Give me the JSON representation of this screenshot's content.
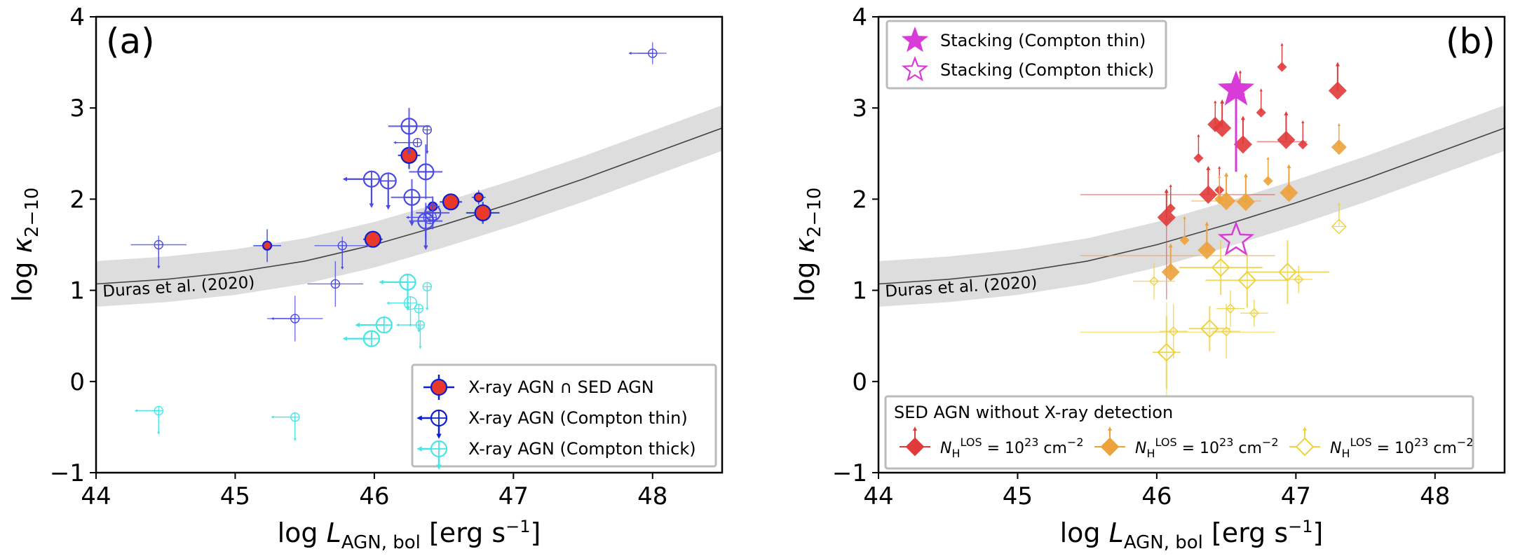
{
  "chart_data": [
    {
      "type": "scatter",
      "panel_label": "(a)",
      "xlabel": "log L_AGN, bol [erg s⁻¹]",
      "ylabel": "log κ2−10",
      "xlim": [
        44,
        48.5
      ],
      "ylim": [
        -1,
        4
      ],
      "xticks": [
        "44",
        "45",
        "46",
        "47",
        "48"
      ],
      "yticks": [
        "−1",
        "0",
        "1",
        "2",
        "3",
        "4"
      ],
      "grid": false,
      "relation": {
        "label": "Duras et al. (2020)",
        "x": [
          44.0,
          44.5,
          45.0,
          45.5,
          46.0,
          46.5,
          47.0,
          47.5,
          48.0,
          48.5
        ],
        "y": [
          1.07,
          1.12,
          1.2,
          1.32,
          1.5,
          1.72,
          1.96,
          2.22,
          2.5,
          2.78
        ],
        "band": 0.25
      },
      "legend": {
        "position": "lower right",
        "entries": [
          "X-ray AGN ∩ SED AGN",
          "X-ray AGN (Compton thin)",
          "X-ray AGN (Compton thick)"
        ]
      },
      "series": [
        {
          "name": "X-ray AGN ∩ SED AGN",
          "color": "#e8392a",
          "edge": "#0a1fd1",
          "points": [
            {
              "x": 46.25,
              "y": 2.48,
              "s": 1,
              "xe": 0.08,
              "ye": 0.15
            },
            {
              "x": 45.99,
              "y": 1.56,
              "s": 1,
              "xe": 0.07,
              "ye": 0.09
            },
            {
              "x": 46.55,
              "y": 1.97,
              "s": 1,
              "xe": 0.08,
              "ye": 0.09
            },
            {
              "x": 46.78,
              "y": 1.85,
              "s": 1,
              "xe": 0.12,
              "ye": 0.12
            },
            {
              "x": 45.23,
              "y": 1.49,
              "s": 0.5,
              "xe": 0.1,
              "ye": 0.18
            },
            {
              "x": 46.42,
              "y": 1.92,
              "s": 0.5,
              "xe": 0.05,
              "ye": 0.08
            },
            {
              "x": 46.75,
              "y": 2.02,
              "s": 0.5,
              "xe": 0.05,
              "ye": 0.08
            }
          ]
        },
        {
          "name": "X-ray AGN (Compton thin)",
          "color": "#4a4ae6",
          "points": [
            {
              "x": 46.25,
              "y": 2.8,
              "s": 1,
              "xe": 0.15,
              "ye": 0.2,
              "ul": "y"
            },
            {
              "x": 46.27,
              "y": 2.02,
              "s": 1,
              "xe": 0.15,
              "ye": 0.2,
              "ul": "y"
            },
            {
              "x": 45.98,
              "y": 2.22,
              "s": 1,
              "ul": "xy"
            },
            {
              "x": 46.1,
              "y": 2.2,
              "s": 1,
              "ul": "y"
            },
            {
              "x": 46.37,
              "y": 2.3,
              "s": 1,
              "xe": 0.12,
              "ye": 0.3
            },
            {
              "x": 46.42,
              "y": 1.85,
              "s": 1,
              "xe": 0.12,
              "ye": 0.18
            },
            {
              "x": 46.37,
              "y": 1.76,
              "s": 1,
              "xe": 0.12,
              "ye": 0.2,
              "ul": "y"
            },
            {
              "x": 46.4,
              "y": 1.8,
              "s": 0.8,
              "ul": "x"
            },
            {
              "x": 46.31,
              "y": 2.62,
              "s": 0.55,
              "ul": "x"
            },
            {
              "x": 46.38,
              "y": 2.76,
              "s": 0.55,
              "ul": "y"
            },
            {
              "x": 48.0,
              "y": 3.6,
              "s": 0.55,
              "xe": 0.1,
              "ye": 0.12,
              "ul": "x"
            },
            {
              "x": 44.45,
              "y": 1.5,
              "s": 0.55,
              "xe": 0.2,
              "ye": 0.1,
              "ul": "y"
            },
            {
              "x": 45.77,
              "y": 1.49,
              "s": 0.55,
              "xe": 0.2,
              "ye": 0.1,
              "ul": "y"
            },
            {
              "x": 45.72,
              "y": 1.07,
              "s": 0.55,
              "xe": 0.2,
              "ye": 0.25
            },
            {
              "x": 45.43,
              "y": 0.69,
              "s": 0.55,
              "xe": 0.2,
              "ye": 0.25,
              "ul": "x"
            }
          ]
        },
        {
          "name": "X-ray AGN (Compton thick)",
          "color": "#45e6e8",
          "points": [
            {
              "x": 46.24,
              "y": 1.09,
              "s": 1,
              "ul": "xy"
            },
            {
              "x": 46.07,
              "y": 0.62,
              "s": 1,
              "ul": "x"
            },
            {
              "x": 45.98,
              "y": 0.47,
              "s": 1,
              "ul": "x"
            },
            {
              "x": 46.26,
              "y": 0.86,
              "s": 0.8,
              "ul": "xy"
            },
            {
              "x": 46.38,
              "y": 1.04,
              "s": 0.55,
              "ul": "y"
            },
            {
              "x": 46.32,
              "y": 0.8,
              "s": 0.55,
              "ul": "y"
            },
            {
              "x": 46.33,
              "y": 0.62,
              "s": 0.55,
              "ul": "xy"
            },
            {
              "x": 44.45,
              "y": -0.32,
              "s": 0.55,
              "ul": "xy"
            },
            {
              "x": 45.43,
              "y": -0.39,
              "s": 0.55,
              "ul": "xy"
            }
          ]
        }
      ]
    },
    {
      "type": "scatter",
      "panel_label": "(b)",
      "xlabel": "log L_AGN, bol [erg s⁻¹]",
      "ylabel": "log κ2−10",
      "xlim": [
        44,
        48.5
      ],
      "ylim": [
        -1,
        4
      ],
      "xticks": [
        "44",
        "45",
        "46",
        "47",
        "48"
      ],
      "yticks": [
        "−1",
        "0",
        "1",
        "2",
        "3",
        "4"
      ],
      "grid": false,
      "relation": {
        "label": "Duras et al. (2020)",
        "x": [
          44.0,
          44.5,
          45.0,
          45.5,
          46.0,
          46.5,
          47.0,
          47.5,
          48.0,
          48.5
        ],
        "y": [
          1.07,
          1.12,
          1.2,
          1.32,
          1.5,
          1.72,
          1.96,
          2.22,
          2.5,
          2.78
        ],
        "band": 0.25
      },
      "legend_top": {
        "position": "upper left",
        "entries": [
          "Stacking (Compton thin)",
          "Stacking (Compton thick)"
        ]
      },
      "legend_bottom": {
        "position": "lower center",
        "title": "SED AGN without X-ray detection",
        "entries": [
          "N_H^LOS = 10^23 cm^−2",
          "N_H^LOS = 10^23 cm^−2",
          "N_H^LOS = 10^23 cm^−2"
        ]
      },
      "stacking": [
        {
          "name": "Stacking (Compton thin)",
          "x": 46.57,
          "y": 3.2,
          "filled": true,
          "color": "#d93bd9",
          "ye_low": 0.9
        },
        {
          "name": "Stacking (Compton thick)",
          "x": 46.57,
          "y": 1.55,
          "filled": false,
          "color": "#d93bd9"
        }
      ],
      "series": [
        {
          "name": "N_H^LOS = 10^23 cm^−2 (red)",
          "color": "#e23a3a",
          "points": [
            {
              "x": 46.47,
              "y": 2.78,
              "s": 1,
              "ul": "y"
            },
            {
              "x": 46.42,
              "y": 2.82,
              "s": 0.8,
              "ul": "y"
            },
            {
              "x": 46.62,
              "y": 2.6,
              "s": 1,
              "ul": "y"
            },
            {
              "x": 46.93,
              "y": 2.65,
              "s": 1,
              "ul": "y"
            },
            {
              "x": 47.3,
              "y": 3.19,
              "s": 1,
              "ul": "y"
            },
            {
              "x": 46.37,
              "y": 2.05,
              "s": 1,
              "ul": "y"
            },
            {
              "x": 46.07,
              "y": 1.8,
              "s": 1,
              "ul": "y"
            },
            {
              "x": 46.9,
              "y": 3.45,
              "s": 0.5,
              "ul": "y"
            },
            {
              "x": 46.6,
              "y": 3.15,
              "s": 0.5,
              "ul": "y"
            },
            {
              "x": 46.3,
              "y": 2.45,
              "s": 0.5,
              "ul": "y"
            },
            {
              "x": 46.75,
              "y": 2.95,
              "s": 0.5,
              "ul": "y"
            },
            {
              "x": 47.05,
              "y": 2.6,
              "s": 0.5,
              "ul": "y"
            },
            {
              "x": 46.1,
              "y": 1.9,
              "s": 0.5,
              "ul": "y"
            },
            {
              "x": 46.45,
              "y": 2.1,
              "s": 0.5,
              "ul": "y"
            }
          ]
        },
        {
          "name": "N_H^LOS = 10^23 cm^−2 (orange)",
          "color": "#eda23a",
          "points": [
            {
              "x": 46.36,
              "y": 1.44,
              "s": 1,
              "ul": "y"
            },
            {
              "x": 46.1,
              "y": 1.2,
              "s": 1,
              "ul": "y"
            },
            {
              "x": 46.5,
              "y": 1.98,
              "s": 1,
              "ul": "y"
            },
            {
              "x": 46.64,
              "y": 1.97,
              "s": 1,
              "ul": "y"
            },
            {
              "x": 46.95,
              "y": 2.07,
              "s": 1,
              "ul": "y"
            },
            {
              "x": 47.31,
              "y": 2.57,
              "s": 0.8,
              "ul": "y"
            },
            {
              "x": 46.45,
              "y": 2.0,
              "s": 0.55,
              "ul": "y"
            },
            {
              "x": 46.2,
              "y": 1.55,
              "s": 0.55,
              "ul": "y"
            },
            {
              "x": 46.8,
              "y": 2.2,
              "s": 0.55,
              "ul": "y"
            }
          ]
        },
        {
          "name": "N_H^LOS = 10^23 cm^−2 (yellow)",
          "color": "#f0d23a",
          "points": [
            {
              "x": 46.07,
              "y": 0.32,
              "s": 1,
              "xe": 0.1,
              "ye": 0.4
            },
            {
              "x": 46.38,
              "y": 0.58,
              "s": 1,
              "xe": 0.15,
              "ye": 0.25
            },
            {
              "x": 46.46,
              "y": 1.25,
              "s": 1,
              "xe": 0.3,
              "ye": 0.3
            },
            {
              "x": 46.65,
              "y": 1.11,
              "s": 1,
              "xe": 0.3,
              "ye": 0.3
            },
            {
              "x": 46.94,
              "y": 1.2,
              "s": 1,
              "xe": 0.3,
              "ye": 0.35
            },
            {
              "x": 47.31,
              "y": 1.7,
              "s": 0.8,
              "ul": "y"
            },
            {
              "x": 45.98,
              "y": 1.1,
              "s": 0.5,
              "xe": 0.15,
              "ye": 0.2
            },
            {
              "x": 46.53,
              "y": 0.8,
              "s": 0.5,
              "xe": 0.1,
              "ye": 0.2
            },
            {
              "x": 46.7,
              "y": 0.75,
              "s": 0.5,
              "xe": 0.1,
              "ye": 0.15
            },
            {
              "x": 47.02,
              "y": 1.12,
              "s": 0.5,
              "xe": 0.1,
              "ye": 0.15
            },
            {
              "x": 46.12,
              "y": 0.55,
              "s": 0.5,
              "xe": 0.1,
              "ye": 0.3
            },
            {
              "x": 46.5,
              "y": 0.55,
              "s": 0.5,
              "xe": 0.1,
              "ye": 0.3
            }
          ]
        }
      ]
    }
  ]
}
